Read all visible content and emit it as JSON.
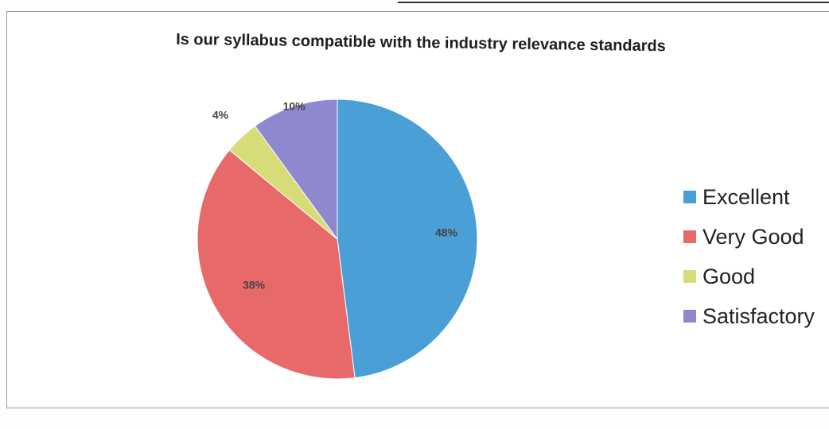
{
  "chart_data": {
    "type": "pie",
    "title": "Is our syllabus compatible with the industry relevance standards",
    "categories": [
      "Excellent",
      "Very Good",
      "Good",
      "Satisfactory"
    ],
    "values": [
      48,
      38,
      4,
      10
    ],
    "data_labels": [
      "48%",
      "38%",
      "4%",
      "10%"
    ],
    "colors": [
      "#4a9fd6",
      "#e8696a",
      "#d6dc78",
      "#8e88cf"
    ],
    "legend_position": "right"
  }
}
